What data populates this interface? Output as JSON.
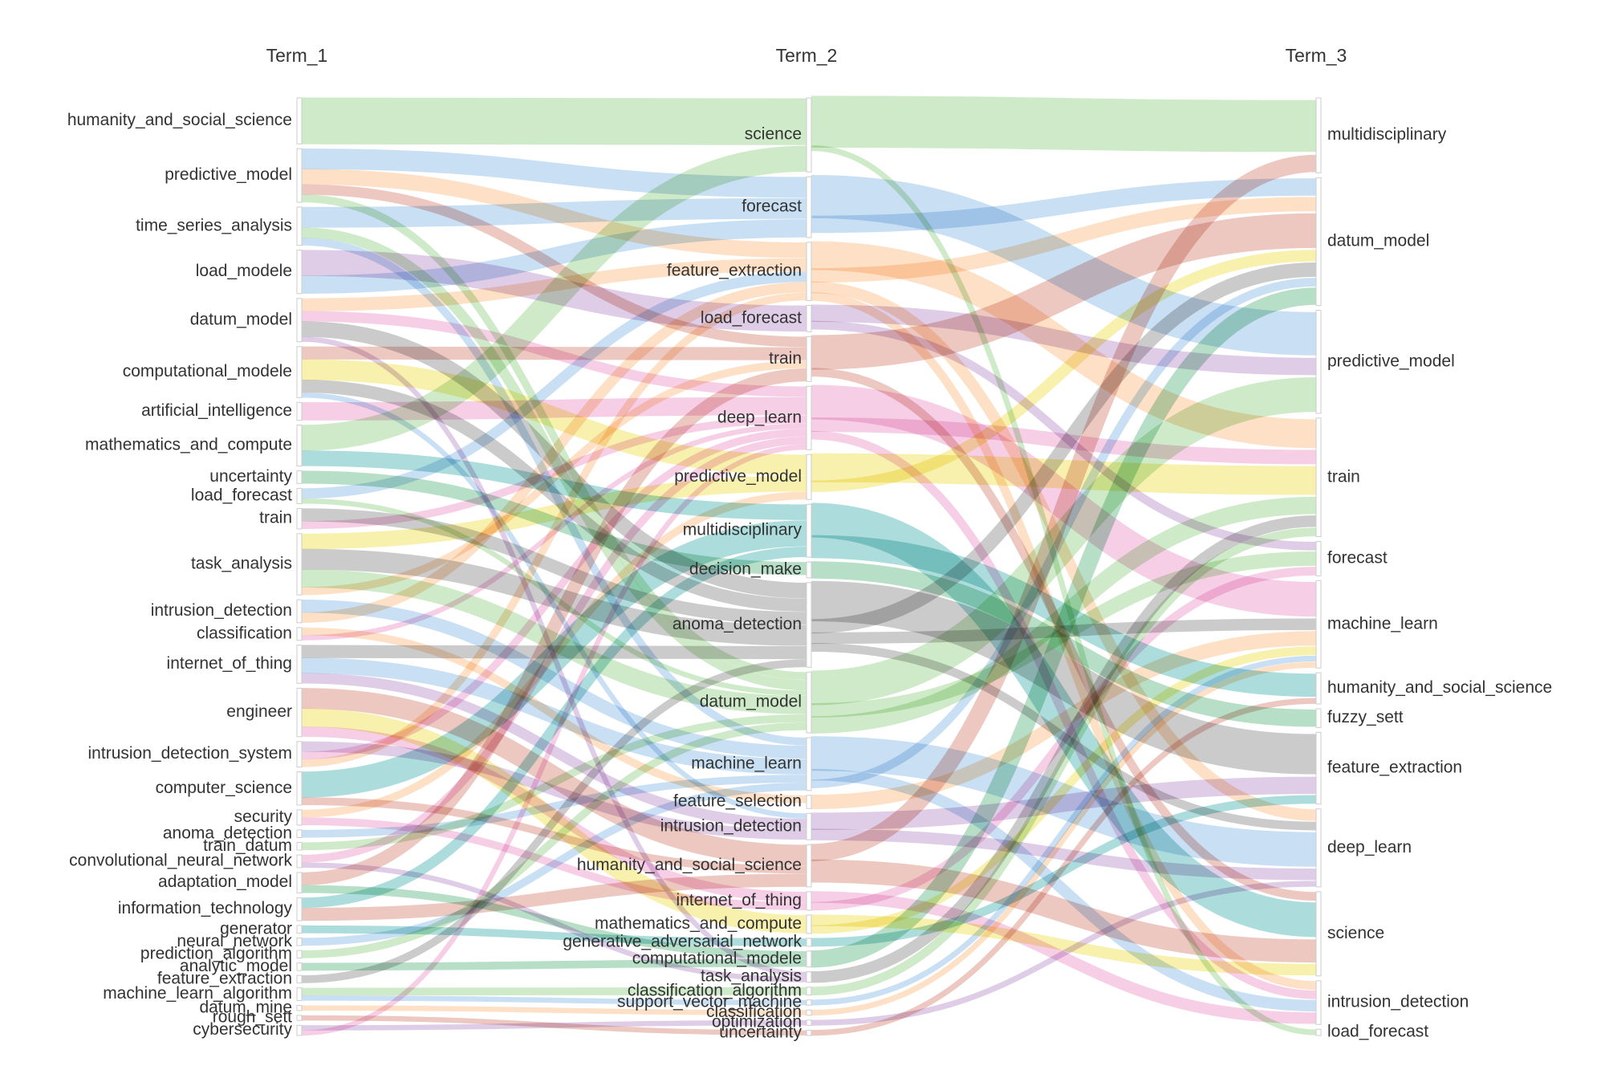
{
  "chart_data": {
    "type": "sankey",
    "columns": [
      "Term_1",
      "Term_2",
      "Term_3"
    ],
    "nodes": {
      "Term_1": [
        "humanity_and_social_science",
        "predictive_model",
        "time_series_analysis",
        "load_modele",
        "datum_model",
        "computational_modele",
        "artificial_intelligence",
        "mathematics_and_compute",
        "uncertainty",
        "load_forecast",
        "train",
        "task_analysis",
        "intrusion_detection",
        "classification",
        "internet_of_thing",
        "engineer",
        "intrusion_detection_system",
        "computer_science",
        "security",
        "anoma_detection",
        "train_datum",
        "convolutional_neural_network",
        "adaptation_model",
        "information_technology",
        "generator",
        "neural_network",
        "prediction_algorithm",
        "analytic_model",
        "feature_extraction",
        "machine_learn_algorithm",
        "datum_mine",
        "rough_sett",
        "cybersecurity"
      ],
      "Term_2": [
        "science",
        "forecast",
        "feature_extraction",
        "load_forecast",
        "train",
        "deep_learn",
        "predictive_model",
        "multidisciplinary",
        "decision_make",
        "anoma_detection",
        "datum_model",
        "machine_learn",
        "feature_selection",
        "intrusion_detection",
        "humanity_and_social_science",
        "internet_of_thing",
        "mathematics_and_compute",
        "generative_adversarial_network",
        "computational_modele",
        "task_analysis",
        "classification_algorithm",
        "support_vector_machine",
        "classification",
        "optimization",
        "uncertainty"
      ],
      "Term_3": [
        "multidisciplinary",
        "datum_model",
        "predictive_model",
        "train",
        "forecast",
        "machine_learn",
        "humanity_and_social_science",
        "fuzzy_sett",
        "feature_extraction",
        "deep_learn",
        "science",
        "intrusion_detection",
        "load_forecast"
      ]
    },
    "colors": {
      "green": "#a8d99a",
      "blue": "#9cc4ea",
      "orange": "#fbc796",
      "purple": "#c4a3d1",
      "salmon": "#dd9a8e",
      "pink": "#eea8d2",
      "yellow": "#f3e36a",
      "teal": "#67c0c0",
      "gray": "#a0a0a0",
      "mint": "#7cc49a"
    },
    "links": [
      [
        "humanity_and_social_science",
        "science",
        "green",
        18
      ],
      [
        "predictive_model",
        "forecast",
        "blue",
        8
      ],
      [
        "predictive_model",
        "feature_extraction",
        "orange",
        6
      ],
      [
        "predictive_model",
        "train",
        "salmon",
        4
      ],
      [
        "predictive_model",
        "datum_model",
        "green",
        3
      ],
      [
        "time_series_analysis",
        "forecast",
        "blue",
        8
      ],
      [
        "time_series_analysis",
        "datum_model",
        "green",
        4
      ],
      [
        "time_series_analysis",
        "machine_learn",
        "blue",
        3
      ],
      [
        "load_modele",
        "load_forecast",
        "purple",
        10
      ],
      [
        "load_modele",
        "forecast",
        "blue",
        7
      ],
      [
        "datum_model",
        "feature_extraction",
        "orange",
        5
      ],
      [
        "datum_model",
        "deep_learn",
        "pink",
        4
      ],
      [
        "datum_model",
        "anoma_detection",
        "gray",
        6
      ],
      [
        "datum_model",
        "task_analysis",
        "purple",
        2
      ],
      [
        "computational_modele",
        "train",
        "salmon",
        5
      ],
      [
        "computational_modele",
        "predictive_model",
        "yellow",
        8
      ],
      [
        "computational_modele",
        "anoma_detection",
        "gray",
        5
      ],
      [
        "computational_modele",
        "intrusion_detection",
        "blue",
        2
      ],
      [
        "artificial_intelligence",
        "deep_learn",
        "pink",
        7
      ],
      [
        "mathematics_and_compute",
        "science",
        "green",
        10
      ],
      [
        "mathematics_and_compute",
        "multidisciplinary",
        "teal",
        6
      ],
      [
        "uncertainty",
        "decision_make",
        "mint",
        5
      ],
      [
        "load_forecast",
        "feature_extraction",
        "blue",
        4
      ],
      [
        "load_forecast",
        "datum_model",
        "green",
        2
      ],
      [
        "train",
        "anoma_detection",
        "gray",
        5
      ],
      [
        "train",
        "deep_learn",
        "pink",
        3
      ],
      [
        "task_analysis",
        "predictive_model",
        "yellow",
        6
      ],
      [
        "task_analysis",
        "anoma_detection",
        "gray",
        8
      ],
      [
        "task_analysis",
        "datum_model",
        "green",
        7
      ],
      [
        "task_analysis",
        "train",
        "orange",
        3
      ],
      [
        "intrusion_detection",
        "machine_learn",
        "blue",
        5
      ],
      [
        "intrusion_detection",
        "feature_extraction",
        "orange",
        4
      ],
      [
        "classification",
        "feature_selection",
        "orange",
        3
      ],
      [
        "classification",
        "deep_learn",
        "pink",
        2
      ],
      [
        "internet_of_thing",
        "anoma_detection",
        "gray",
        5
      ],
      [
        "internet_of_thing",
        "machine_learn",
        "blue",
        6
      ],
      [
        "internet_of_thing",
        "intrusion_detection",
        "purple",
        4
      ],
      [
        "engineer",
        "humanity_and_social_science",
        "salmon",
        8
      ],
      [
        "engineer",
        "mathematics_and_compute",
        "yellow",
        7
      ],
      [
        "engineer",
        "internet_of_thing",
        "pink",
        4
      ],
      [
        "intrusion_detection_system",
        "intrusion_detection",
        "purple",
        4
      ],
      [
        "intrusion_detection_system",
        "deep_learn",
        "pink",
        3
      ],
      [
        "intrusion_detection_system",
        "feature_extraction",
        "orange",
        3
      ],
      [
        "computer_science",
        "multidisciplinary",
        "teal",
        10
      ],
      [
        "computer_science",
        "humanity_and_social_science",
        "salmon",
        3
      ],
      [
        "security",
        "predictive_model",
        "orange",
        3
      ],
      [
        "security",
        "internet_of_thing",
        "pink",
        3
      ],
      [
        "anoma_detection",
        "machine_learn",
        "blue",
        3
      ],
      [
        "train_datum",
        "datum_model",
        "green",
        3
      ],
      [
        "convolutional_neural_network",
        "deep_learn",
        "pink",
        3
      ],
      [
        "convolutional_neural_network",
        "task_analysis",
        "purple",
        2
      ],
      [
        "adaptation_model",
        "train",
        "salmon",
        5
      ],
      [
        "adaptation_model",
        "computational_modele",
        "mint",
        3
      ],
      [
        "information_technology",
        "multidisciplinary",
        "teal",
        4
      ],
      [
        "information_technology",
        "humanity_and_social_science",
        "salmon",
        5
      ],
      [
        "generator",
        "generative_adversarial_network",
        "teal",
        3
      ],
      [
        "neural_network",
        "machine_learn",
        "blue",
        3
      ],
      [
        "prediction_algorithm",
        "datum_model",
        "green",
        3
      ],
      [
        "analytic_model",
        "computational_modele",
        "mint",
        3
      ],
      [
        "feature_extraction",
        "anoma_detection",
        "gray",
        3
      ],
      [
        "machine_learn_algorithm",
        "classification_algorithm",
        "green",
        3
      ],
      [
        "machine_learn_algorithm",
        "support_vector_machine",
        "blue",
        2
      ],
      [
        "datum_mine",
        "classification",
        "orange",
        2
      ],
      [
        "rough_sett",
        "uncertainty",
        "salmon",
        2
      ],
      [
        "cybersecurity",
        "optimization",
        "purple",
        2
      ],
      [
        "cybersecurity",
        "deep_learn",
        "pink",
        2
      ],
      [
        "science",
        "multidisciplinary",
        "green",
        18
      ],
      [
        "science",
        "load_forecast",
        "green",
        2
      ],
      [
        "forecast",
        "predictive_model",
        "blue",
        15
      ],
      [
        "forecast",
        "datum_model",
        "blue",
        6
      ],
      [
        "feature_extraction",
        "train",
        "orange",
        10
      ],
      [
        "feature_extraction",
        "datum_model",
        "orange",
        5
      ],
      [
        "feature_extraction",
        "deep_learn",
        "orange",
        4
      ],
      [
        "feature_extraction",
        "intrusion_detection",
        "orange",
        3
      ],
      [
        "load_forecast",
        "predictive_model",
        "purple",
        6
      ],
      [
        "load_forecast",
        "forecast",
        "purple",
        3
      ],
      [
        "train",
        "datum_model",
        "salmon",
        12
      ],
      [
        "train",
        "science",
        "salmon",
        3
      ],
      [
        "deep_learn",
        "machine_learn",
        "pink",
        12
      ],
      [
        "deep_learn",
        "train",
        "pink",
        5
      ],
      [
        "deep_learn",
        "intrusion_detection",
        "pink",
        3
      ],
      [
        "predictive_model",
        "train",
        "yellow",
        10
      ],
      [
        "predictive_model",
        "datum_model",
        "yellow",
        4
      ],
      [
        "multidisciplinary",
        "science",
        "teal",
        12
      ],
      [
        "multidisciplinary",
        "humanity_and_social_science",
        "teal",
        8
      ],
      [
        "decision_make",
        "fuzzy_sett",
        "mint",
        6
      ],
      [
        "anoma_detection",
        "feature_extraction",
        "gray",
        14
      ],
      [
        "anoma_detection",
        "datum_model",
        "gray",
        5
      ],
      [
        "anoma_detection",
        "machine_learn",
        "gray",
        4
      ],
      [
        "anoma_detection",
        "deep_learn",
        "gray",
        3
      ],
      [
        "datum_model",
        "predictive_model",
        "green",
        12
      ],
      [
        "datum_model",
        "forecast",
        "green",
        5
      ],
      [
        "datum_model",
        "train",
        "green",
        6
      ],
      [
        "machine_learn",
        "deep_learn",
        "blue",
        12
      ],
      [
        "machine_learn",
        "intrusion_detection",
        "blue",
        4
      ],
      [
        "machine_learn",
        "datum_model",
        "blue",
        3
      ],
      [
        "feature_selection",
        "machine_learn",
        "orange",
        5
      ],
      [
        "intrusion_detection",
        "feature_extraction",
        "purple",
        6
      ],
      [
        "intrusion_detection",
        "deep_learn",
        "purple",
        4
      ],
      [
        "humanity_and_social_science",
        "multidisciplinary",
        "salmon",
        6
      ],
      [
        "humanity_and_social_science",
        "science",
        "salmon",
        8
      ],
      [
        "internet_of_thing",
        "intrusion_detection",
        "pink",
        4
      ],
      [
        "internet_of_thing",
        "forecast",
        "pink",
        3
      ],
      [
        "mathematics_and_compute",
        "science",
        "yellow",
        4
      ],
      [
        "mathematics_and_compute",
        "machine_learn",
        "yellow",
        3
      ],
      [
        "generative_adversarial_network",
        "feature_extraction",
        "teal",
        3
      ],
      [
        "computational_modele",
        "datum_model",
        "mint",
        6
      ],
      [
        "task_analysis",
        "train",
        "gray",
        4
      ],
      [
        "classification_algorithm",
        "train",
        "green",
        3
      ],
      [
        "support_vector_machine",
        "machine_learn",
        "blue",
        2
      ],
      [
        "classification",
        "machine_learn",
        "orange",
        2
      ],
      [
        "optimization",
        "deep_learn",
        "purple",
        2
      ],
      [
        "uncertainty",
        "humanity_and_social_science",
        "salmon",
        2
      ]
    ]
  }
}
